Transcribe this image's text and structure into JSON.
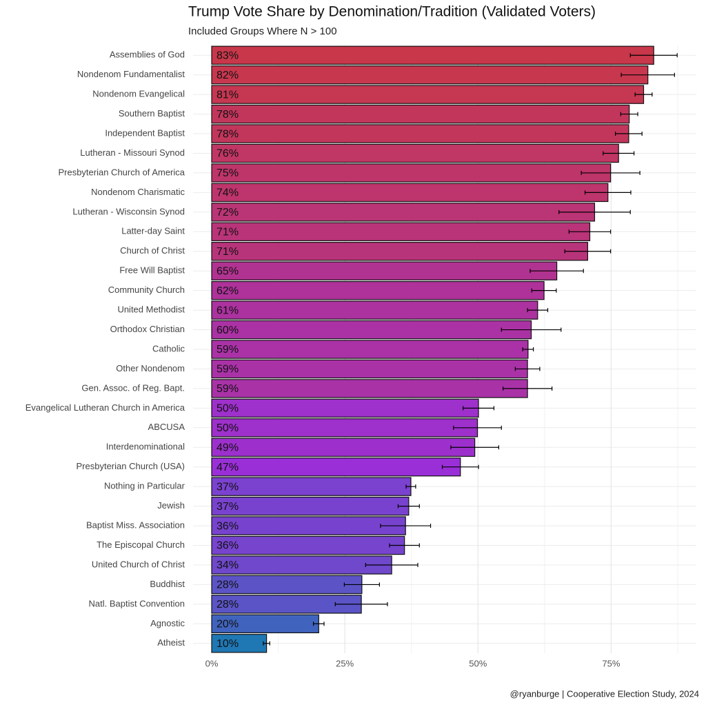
{
  "chart_data": {
    "type": "barh",
    "title": "Trump Vote Share by Denomination/Tradition (Validated Voters)",
    "subtitle": "Included Groups Where N > 100",
    "caption": "@ryanburge | Cooperative Election Study, 2024",
    "categories": [
      "Assemblies of God",
      "Nondenom Fundamentalist",
      "Nondenom Evangelical",
      "Southern Baptist",
      "Independent Baptist",
      "Lutheran - Missouri Synod",
      "Presbyterian Church of America",
      "Nondenom Charismatic",
      "Lutheran - Wisconsin Synod",
      "Latter-day Saint",
      "Church of Christ",
      "Free Will Baptist",
      "Community Church",
      "United Methodist",
      "Orthodox Christian",
      "Catholic",
      "Other Nondenom",
      "Gen. Assoc. of Reg. Bapt.",
      "Evangelical Lutheran Church in America",
      "ABCUSA",
      "Interdenominational",
      "Presbyterian Church (USA)",
      "Nothing in Particular",
      "Jewish",
      "Baptist Miss. Association",
      "The Episcopal Church",
      "United Church of Christ",
      "Buddhist",
      "Natl. Baptist Convention",
      "Agnostic",
      "Atheist"
    ],
    "values": [
      83.0,
      81.9,
      81.1,
      78.4,
      78.3,
      76.4,
      74.9,
      74.4,
      71.9,
      71.0,
      70.6,
      64.8,
      62.4,
      61.2,
      60.0,
      59.4,
      59.3,
      59.3,
      50.1,
      49.9,
      49.4,
      46.7,
      37.4,
      37.0,
      36.4,
      36.2,
      33.8,
      28.2,
      28.1,
      20.1,
      10.3
    ],
    "value_labels": [
      "83%",
      "82%",
      "81%",
      "78%",
      "78%",
      "76%",
      "75%",
      "74%",
      "72%",
      "71%",
      "71%",
      "65%",
      "62%",
      "61%",
      "60%",
      "59%",
      "59%",
      "59%",
      "50%",
      "50%",
      "49%",
      "47%",
      "37%",
      "37%",
      "36%",
      "36%",
      "34%",
      "28%",
      "28%",
      "20%",
      "10%"
    ],
    "errors": [
      4.4,
      5.0,
      1.6,
      1.6,
      2.5,
      2.9,
      5.5,
      4.3,
      6.7,
      3.9,
      4.3,
      5.0,
      2.3,
      1.9,
      5.6,
      1.0,
      2.3,
      4.6,
      2.9,
      4.5,
      4.5,
      3.4,
      0.9,
      2.0,
      4.7,
      2.8,
      4.9,
      3.3,
      4.9,
      1.0,
      0.6
    ],
    "color_scale": [
      "#1f77b4",
      "#9a2fd8",
      "#c8374a"
    ],
    "xlim": [
      -3.5,
      91
    ],
    "xticks": [
      {
        "value": 0,
        "label": "0%"
      },
      {
        "value": 25,
        "label": "25%"
      },
      {
        "value": 50,
        "label": "50%"
      },
      {
        "value": 75,
        "label": "75%"
      }
    ],
    "grid": true
  }
}
